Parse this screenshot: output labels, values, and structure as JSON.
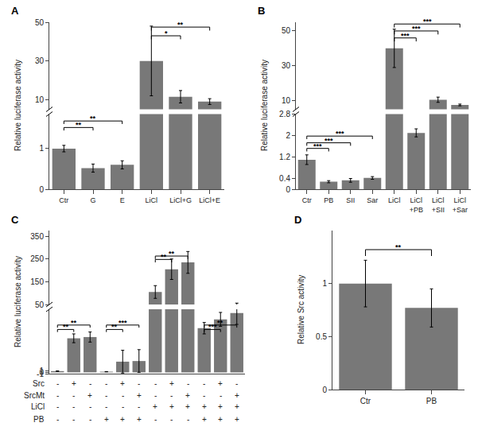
{
  "chart_data": [
    {
      "type": "bar",
      "title": "A",
      "categories": [
        "Ctr",
        "G",
        "E",
        "LiCl",
        "LiCl+G",
        "LiCl+E"
      ],
      "values": [
        1.0,
        0.52,
        0.6,
        30.0,
        11.5,
        9.0
      ],
      "errors": [
        0.08,
        0.1,
        0.1,
        18.0,
        3.2,
        1.5
      ],
      "ylabel": "Relative luciferase activity",
      "color": "#787878",
      "ylim": [
        [
          0,
          1.85
        ],
        [
          5.0,
          50
        ]
      ],
      "yticks": [
        [
          0,
          1
        ],
        [
          10,
          30,
          50
        ]
      ],
      "grid": false,
      "annotations": [
        {
          "text": "**",
          "x": [
            0,
            1
          ],
          "y": 1.52
        },
        {
          "text": "**",
          "x": [
            0,
            2
          ],
          "y": 1.68
        },
        {
          "text": "*",
          "x": [
            3,
            4
          ],
          "y": 43
        },
        {
          "text": "**",
          "x": [
            3,
            5
          ],
          "y": 47.5
        }
      ]
    },
    {
      "type": "bar",
      "title": "B",
      "categories": [
        "Ctr",
        "PB",
        "SII",
        "Sar",
        "LiCl",
        "LiCl\n+PB",
        "LiCl\n+SII",
        "LiCl\n+Sar"
      ],
      "values": [
        1.1,
        0.28,
        0.33,
        0.42,
        40.0,
        2.1,
        10.5,
        7.5
      ],
      "errors": [
        0.18,
        0.04,
        0.07,
        0.05,
        11.0,
        0.15,
        1.5,
        0.5
      ],
      "ylabel": "Relative luciferase activity",
      "color": "#787878",
      "ylim": [
        [
          0,
          2.8
        ],
        [
          5.0,
          55
        ]
      ],
      "yticks": [
        [
          0,
          0.4,
          1.2,
          2,
          2.8
        ],
        [
          10,
          30,
          50
        ]
      ],
      "grid": false,
      "annotations": [
        {
          "text": "***",
          "x": [
            0,
            1
          ],
          "y": 1.52
        },
        {
          "text": "***",
          "x": [
            0,
            2
          ],
          "y": 1.73
        },
        {
          "text": "***",
          "x": [
            0,
            3
          ],
          "y": 1.98
        },
        {
          "text": "***",
          "x": [
            4,
            5
          ],
          "y": 46
        },
        {
          "text": "***",
          "x": [
            4,
            6
          ],
          "y": 50
        },
        {
          "text": "***",
          "x": [
            4,
            7
          ],
          "y": 54
        }
      ]
    },
    {
      "type": "bar",
      "title": "C",
      "categories": [
        null,
        null,
        null,
        null,
        null,
        null,
        null,
        null,
        null,
        null,
        null,
        null
      ],
      "values": [
        1.0,
        27.0,
        28.0,
        0.55,
        8.5,
        9.0,
        105.0,
        205.0,
        235.0,
        35.0,
        42.0,
        47.0
      ],
      "errors": [
        0.15,
        3.5,
        4.0,
        0.12,
        9.0,
        9.0,
        28.0,
        45.0,
        48.0,
        4.5,
        5.5,
        9.0
      ],
      "ylabel": "Relative luciferase activity",
      "color": "#787878",
      "ylim": [
        [
          -1,
          50
        ],
        [
          50,
          375
        ]
      ],
      "yticks": [
        [
          -1,
          0,
          1
        ],
        [
          50,
          150,
          250,
          350
        ]
      ],
      "grid": false,
      "annotations": [
        {
          "text": "**",
          "x": [
            0,
            1
          ],
          "y": 34
        },
        {
          "text": "**",
          "x": [
            0,
            2
          ],
          "y": 37.5
        },
        {
          "text": "**",
          "x": [
            3,
            4
          ],
          "y": 34
        },
        {
          "text": "***",
          "x": [
            3,
            5
          ],
          "y": 37.5
        },
        {
          "text": "**",
          "x": [
            6,
            7
          ],
          "y": 248
        },
        {
          "text": "**",
          "x": [
            6,
            8
          ],
          "y": 263
        },
        {
          "text": "***",
          "x": [
            9,
            10
          ],
          "y": 34
        },
        {
          "text": "**",
          "x": [
            9,
            11
          ],
          "y": 37.5
        }
      ],
      "conditions": [
        {
          "name": "Src",
          "values": [
            "-",
            "+",
            "-",
            "-",
            "+",
            "-",
            "-",
            "+",
            "-",
            "-",
            "+",
            "-"
          ]
        },
        {
          "name": "SrcMt",
          "values": [
            "-",
            "-",
            "+",
            "-",
            "-",
            "+",
            "-",
            "-",
            "+",
            "-",
            "-",
            "+"
          ]
        },
        {
          "name": "LiCl",
          "values": [
            "-",
            "-",
            "-",
            "-",
            "-",
            "-",
            "+",
            "+",
            "+",
            "+",
            "+",
            "+"
          ]
        },
        {
          "name": "PB",
          "values": [
            "-",
            "-",
            "-",
            "+",
            "+",
            "+",
            "-",
            "-",
            "-",
            "+",
            "+",
            "+"
          ]
        }
      ]
    },
    {
      "type": "bar",
      "title": "D",
      "categories": [
        "Ctr",
        "PB"
      ],
      "values": [
        1.0,
        0.77
      ],
      "errors": [
        0.22,
        0.18
      ],
      "ylabel": "Relative Src activity",
      "color": "#787878",
      "ylim": [
        0,
        1.5
      ],
      "yticks": [
        0,
        0.5,
        1
      ],
      "grid": false,
      "annotations": [
        {
          "text": "**",
          "x": [
            0,
            1
          ],
          "y": 1.32
        }
      ]
    }
  ]
}
